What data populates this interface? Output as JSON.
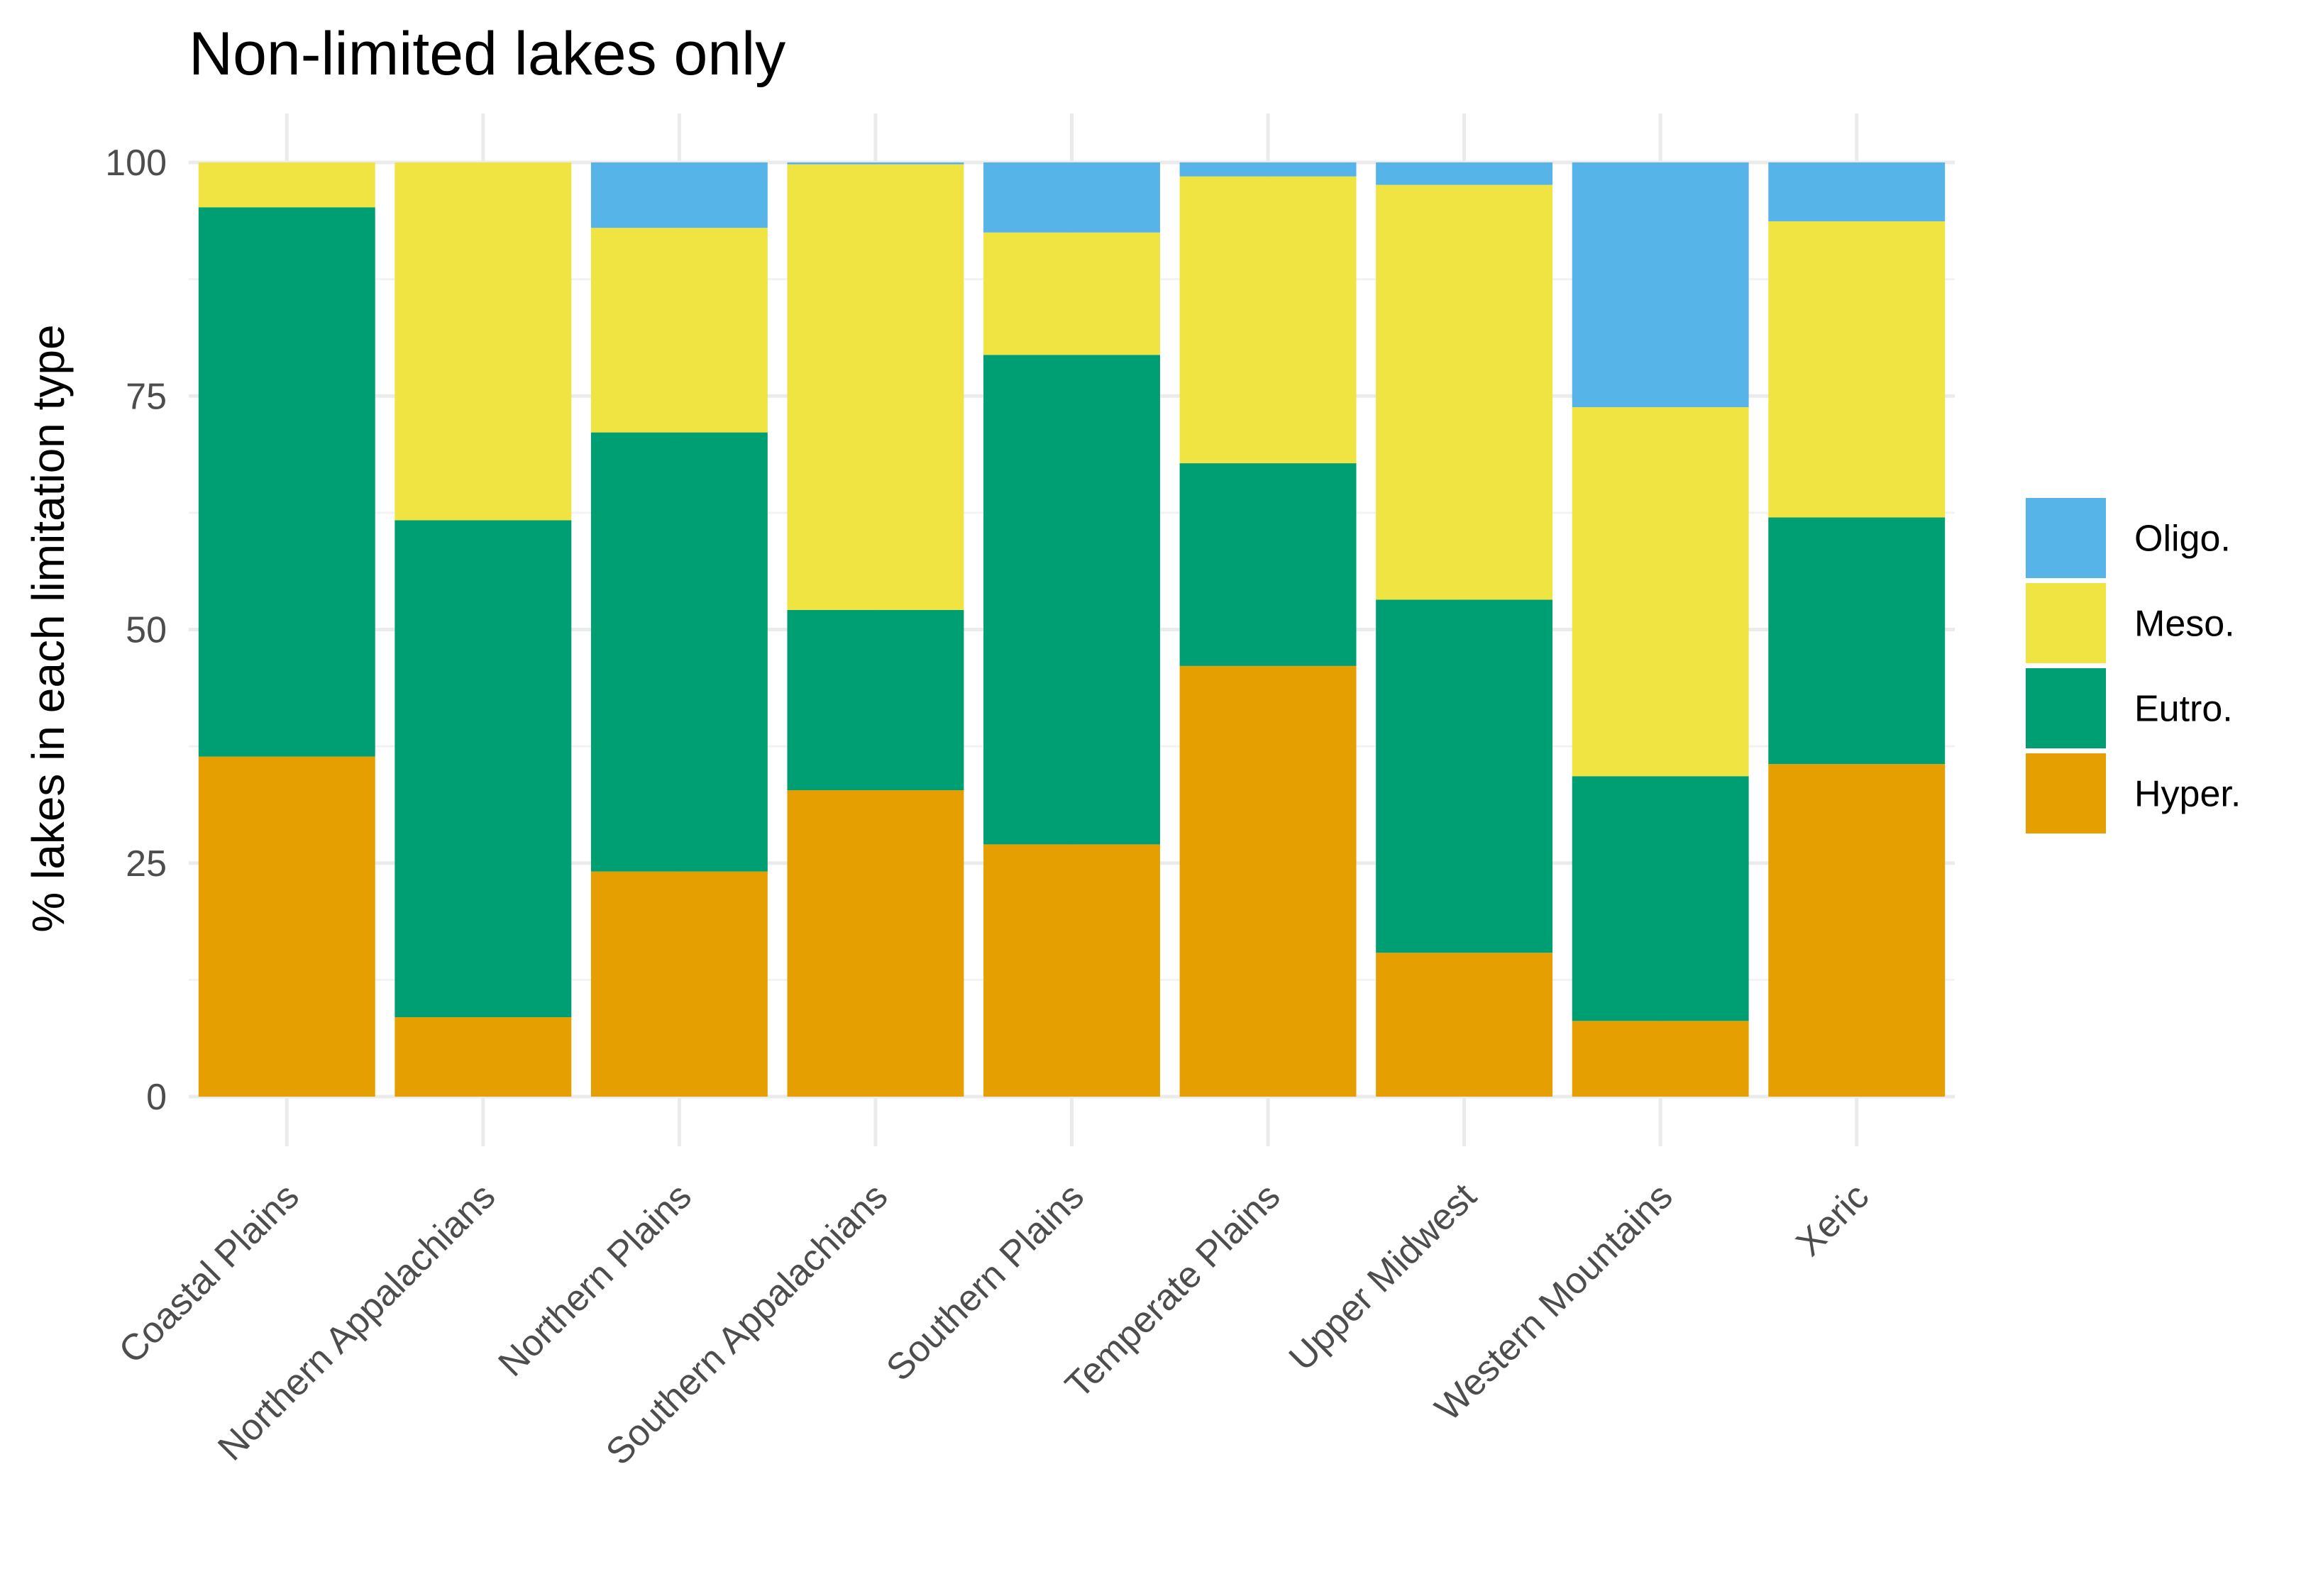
{
  "chart_data": {
    "type": "bar",
    "stacked": true,
    "title": "Non-limited lakes only",
    "xlabel": "",
    "ylabel": "% lakes in each limitation type",
    "ylim": [
      0,
      100
    ],
    "yticks": [
      "0",
      "25",
      "50",
      "75",
      "100"
    ],
    "categories": [
      "Coastal Plains",
      "Northern Appalachians",
      "Northern Plains",
      "Southern Appalachians",
      "Southern Plains",
      "Temperate Plains",
      "Upper Midwest",
      "Western Mountains",
      "Xeric"
    ],
    "series": [
      {
        "name": "Hyper.",
        "color": "#E69F00",
        "values": [
          36.4,
          8.5,
          24.1,
          32.8,
          27.0,
          46.1,
          15.4,
          8.1,
          35.6
        ]
      },
      {
        "name": "Eutro.",
        "color": "#009E73",
        "values": [
          58.8,
          53.2,
          47.0,
          19.3,
          52.4,
          21.7,
          37.8,
          26.2,
          26.4
        ]
      },
      {
        "name": "Meso.",
        "color": "#F0E442",
        "values": [
          4.8,
          38.3,
          21.9,
          47.7,
          13.1,
          30.7,
          44.4,
          39.5,
          31.7
        ]
      },
      {
        "name": "Oligo.",
        "color": "#56B4E9",
        "values": [
          0.0,
          0.0,
          7.0,
          0.2,
          7.5,
          1.5,
          2.4,
          26.2,
          6.3
        ]
      }
    ],
    "legend": {
      "position": "right",
      "order": [
        "Oligo.",
        "Meso.",
        "Eutro.",
        "Hyper."
      ]
    },
    "grid": true
  }
}
